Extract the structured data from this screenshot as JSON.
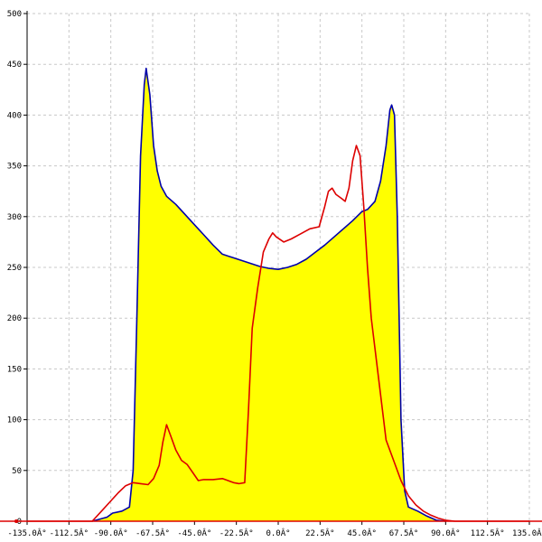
{
  "chart_data": {
    "type": "area",
    "title": "",
    "xlabel": "",
    "ylabel": "",
    "xlim": [
      -135,
      135
    ],
    "ylim": [
      0,
      500
    ],
    "grid": true,
    "x_ticks": [
      -135,
      -112.5,
      -90,
      -67.5,
      -45,
      -22.5,
      0,
      22.5,
      45,
      67.5,
      90,
      112.5,
      135
    ],
    "x_tick_labels": [
      "-135.0Â°",
      "-112.5Â°",
      "-90.0Â°",
      "-67.5Â°",
      "-45.0Â°",
      "-22.5Â°",
      "0.0Â°",
      "22.5Â°",
      "45.0Â°",
      "67.5Â°",
      "90.0Â°",
      "112.5Â°",
      "135.0Â°"
    ],
    "y_ticks": [
      0,
      50,
      100,
      150,
      200,
      250,
      300,
      350,
      400,
      450,
      500
    ],
    "y_tick_labels": [
      "0",
      "50",
      "100",
      "150",
      "200",
      "250",
      "300",
      "350",
      "400",
      "450",
      "500"
    ],
    "series": [
      {
        "color": "#0000aa",
        "fill": "#ffff00",
        "points": [
          [
            -100,
            0
          ],
          [
            -92,
            4
          ],
          [
            -89,
            8
          ],
          [
            -84,
            10
          ],
          [
            -80,
            14
          ],
          [
            -78,
            50
          ],
          [
            -76,
            200
          ],
          [
            -74,
            360
          ],
          [
            -72,
            430
          ],
          [
            -71,
            446
          ],
          [
            -69,
            420
          ],
          [
            -67,
            370
          ],
          [
            -65,
            345
          ],
          [
            -63,
            330
          ],
          [
            -60,
            320
          ],
          [
            -55,
            312
          ],
          [
            -50,
            302
          ],
          [
            -45,
            292
          ],
          [
            -40,
            282
          ],
          [
            -35,
            272
          ],
          [
            -30,
            263
          ],
          [
            -25,
            260
          ],
          [
            -20,
            257
          ],
          [
            -15,
            254
          ],
          [
            -10,
            251
          ],
          [
            -5,
            249
          ],
          [
            0,
            248
          ],
          [
            5,
            250
          ],
          [
            10,
            253
          ],
          [
            15,
            258
          ],
          [
            20,
            265
          ],
          [
            25,
            272
          ],
          [
            30,
            280
          ],
          [
            35,
            288
          ],
          [
            40,
            296
          ],
          [
            45,
            305
          ],
          [
            48,
            307
          ],
          [
            52,
            315
          ],
          [
            55,
            335
          ],
          [
            58,
            370
          ],
          [
            60,
            405
          ],
          [
            61,
            410
          ],
          [
            62.5,
            400
          ],
          [
            64,
            300
          ],
          [
            66,
            100
          ],
          [
            68,
            30
          ],
          [
            70,
            14
          ],
          [
            75,
            10
          ],
          [
            80,
            5
          ],
          [
            85,
            1
          ],
          [
            90,
            0
          ]
        ]
      },
      {
        "color": "#dd0000",
        "fill": "",
        "points": [
          [
            -135,
            0
          ],
          [
            -100,
            0
          ],
          [
            -95,
            10
          ],
          [
            -90,
            20
          ],
          [
            -86,
            28
          ],
          [
            -82,
            35
          ],
          [
            -78,
            38
          ],
          [
            -74,
            37
          ],
          [
            -70,
            36
          ],
          [
            -67,
            42
          ],
          [
            -64,
            55
          ],
          [
            -62,
            78
          ],
          [
            -60,
            95
          ],
          [
            -58,
            85
          ],
          [
            -55,
            70
          ],
          [
            -52,
            60
          ],
          [
            -49,
            56
          ],
          [
            -46,
            48
          ],
          [
            -43,
            40
          ],
          [
            -40,
            41
          ],
          [
            -35,
            41
          ],
          [
            -30,
            42
          ],
          [
            -27,
            40
          ],
          [
            -24,
            38
          ],
          [
            -21,
            37
          ],
          [
            -18,
            38
          ],
          [
            -16,
            110
          ],
          [
            -14,
            190
          ],
          [
            -11,
            230
          ],
          [
            -8,
            265
          ],
          [
            -5,
            278
          ],
          [
            -3,
            284
          ],
          [
            -1,
            280
          ],
          [
            3,
            275
          ],
          [
            7,
            278
          ],
          [
            12,
            283
          ],
          [
            17,
            288
          ],
          [
            22,
            290
          ],
          [
            25,
            310
          ],
          [
            27,
            325
          ],
          [
            29,
            328
          ],
          [
            31,
            322
          ],
          [
            34,
            318
          ],
          [
            36,
            315
          ],
          [
            38,
            328
          ],
          [
            40,
            355
          ],
          [
            42,
            370
          ],
          [
            44,
            360
          ],
          [
            46,
            310
          ],
          [
            48,
            250
          ],
          [
            50,
            200
          ],
          [
            52,
            170
          ],
          [
            54,
            140
          ],
          [
            56,
            110
          ],
          [
            58,
            80
          ],
          [
            62,
            60
          ],
          [
            66,
            40
          ],
          [
            70,
            25
          ],
          [
            74,
            16
          ],
          [
            78,
            10
          ],
          [
            82,
            6
          ],
          [
            86,
            3
          ],
          [
            90,
            1
          ],
          [
            95,
            0
          ],
          [
            135,
            0
          ]
        ]
      }
    ]
  }
}
